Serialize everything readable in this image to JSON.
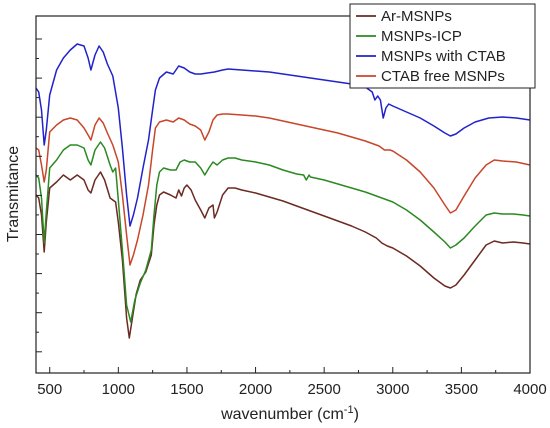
{
  "chart_data": {
    "type": "line",
    "title": "",
    "xlabel": "wavenumber (cm",
    "xlabel_sup": "-1",
    "xlabel_close": ")",
    "ylabel": "Transmitance",
    "xlim": [
      400,
      4000
    ],
    "x_ticks": [
      500,
      1000,
      1500,
      2000,
      2500,
      3000,
      3500,
      4000
    ],
    "y_tick_labels_shown": false,
    "grid": false,
    "legend": "top-right",
    "series": [
      {
        "name": "Ar-MSNPs",
        "color": "#6b2a22",
        "points": [
          [
            400,
            195
          ],
          [
            420,
            198
          ],
          [
            440,
            215
          ],
          [
            460,
            252
          ],
          [
            475,
            222
          ],
          [
            500,
            188
          ],
          [
            550,
            182
          ],
          [
            600,
            175
          ],
          [
            650,
            180
          ],
          [
            700,
            175
          ],
          [
            750,
            180
          ],
          [
            780,
            190
          ],
          [
            800,
            193
          ],
          [
            830,
            180
          ],
          [
            870,
            172
          ],
          [
            900,
            180
          ],
          [
            940,
            198
          ],
          [
            960,
            200
          ],
          [
            980,
            202
          ],
          [
            1000,
            222
          ],
          [
            1030,
            260
          ],
          [
            1060,
            318
          ],
          [
            1080,
            338
          ],
          [
            1100,
            320
          ],
          [
            1130,
            294
          ],
          [
            1160,
            280
          ],
          [
            1200,
            272
          ],
          [
            1240,
            255
          ],
          [
            1260,
            225
          ],
          [
            1280,
            205
          ],
          [
            1300,
            195
          ],
          [
            1330,
            192
          ],
          [
            1380,
            195
          ],
          [
            1420,
            198
          ],
          [
            1440,
            190
          ],
          [
            1460,
            196
          ],
          [
            1480,
            188
          ],
          [
            1500,
            185
          ],
          [
            1530,
            190
          ],
          [
            1560,
            200
          ],
          [
            1600,
            210
          ],
          [
            1630,
            218
          ],
          [
            1660,
            208
          ],
          [
            1690,
            205
          ],
          [
            1700,
            218
          ],
          [
            1720,
            212
          ],
          [
            1760,
            195
          ],
          [
            1800,
            188
          ],
          [
            1850,
            188
          ],
          [
            1900,
            190
          ],
          [
            2000,
            193
          ],
          [
            2100,
            197
          ],
          [
            2200,
            201
          ],
          [
            2300,
            206
          ],
          [
            2400,
            211
          ],
          [
            2500,
            216
          ],
          [
            2600,
            221
          ],
          [
            2700,
            226
          ],
          [
            2800,
            232
          ],
          [
            2880,
            238
          ],
          [
            2920,
            243
          ],
          [
            2960,
            246
          ],
          [
            3000,
            248
          ],
          [
            3100,
            256
          ],
          [
            3200,
            266
          ],
          [
            3300,
            278
          ],
          [
            3380,
            286
          ],
          [
            3420,
            288
          ],
          [
            3460,
            285
          ],
          [
            3520,
            275
          ],
          [
            3600,
            260
          ],
          [
            3680,
            245
          ],
          [
            3740,
            241
          ],
          [
            3800,
            243
          ],
          [
            3880,
            242
          ],
          [
            3950,
            243
          ],
          [
            4000,
            244
          ]
        ]
      },
      {
        "name": "MSNPs-ICP",
        "color": "#2a8a22",
        "points": [
          [
            400,
            175
          ],
          [
            420,
            178
          ],
          [
            440,
            198
          ],
          [
            460,
            243
          ],
          [
            475,
            212
          ],
          [
            500,
            168
          ],
          [
            550,
            160
          ],
          [
            600,
            150
          ],
          [
            650,
            145
          ],
          [
            700,
            145
          ],
          [
            750,
            148
          ],
          [
            780,
            160
          ],
          [
            800,
            165
          ],
          [
            830,
            150
          ],
          [
            870,
            142
          ],
          [
            900,
            148
          ],
          [
            940,
            165
          ],
          [
            960,
            172
          ],
          [
            980,
            168
          ],
          [
            1000,
            200
          ],
          [
            1030,
            250
          ],
          [
            1060,
            305
          ],
          [
            1090,
            322
          ],
          [
            1120,
            300
          ],
          [
            1160,
            283
          ],
          [
            1200,
            270
          ],
          [
            1240,
            250
          ],
          [
            1260,
            215
          ],
          [
            1280,
            185
          ],
          [
            1300,
            172
          ],
          [
            1330,
            168
          ],
          [
            1380,
            170
          ],
          [
            1420,
            170
          ],
          [
            1450,
            162
          ],
          [
            1480,
            160
          ],
          [
            1520,
            162
          ],
          [
            1560,
            162
          ],
          [
            1600,
            168
          ],
          [
            1630,
            175
          ],
          [
            1660,
            168
          ],
          [
            1690,
            162
          ],
          [
            1720,
            165
          ],
          [
            1760,
            160
          ],
          [
            1800,
            158
          ],
          [
            1850,
            158
          ],
          [
            1900,
            160
          ],
          [
            2000,
            162
          ],
          [
            2100,
            165
          ],
          [
            2200,
            170
          ],
          [
            2300,
            174
          ],
          [
            2350,
            175
          ],
          [
            2370,
            180
          ],
          [
            2390,
            175
          ],
          [
            2400,
            177
          ],
          [
            2500,
            180
          ],
          [
            2600,
            184
          ],
          [
            2700,
            188
          ],
          [
            2800,
            192
          ],
          [
            2900,
            197
          ],
          [
            2960,
            200
          ],
          [
            3000,
            202
          ],
          [
            3100,
            210
          ],
          [
            3200,
            220
          ],
          [
            3300,
            232
          ],
          [
            3380,
            242
          ],
          [
            3420,
            248
          ],
          [
            3460,
            245
          ],
          [
            3520,
            238
          ],
          [
            3600,
            226
          ],
          [
            3680,
            215
          ],
          [
            3740,
            213
          ],
          [
            3800,
            214
          ],
          [
            3880,
            214
          ],
          [
            3950,
            215
          ],
          [
            4000,
            216
          ]
        ]
      },
      {
        "name": "MSNPs with CTAB",
        "color": "#2222cc",
        "points": [
          [
            400,
            88
          ],
          [
            420,
            92
          ],
          [
            440,
            110
          ],
          [
            460,
            145
          ],
          [
            475,
            130
          ],
          [
            500,
            95
          ],
          [
            550,
            70
          ],
          [
            600,
            58
          ],
          [
            650,
            50
          ],
          [
            700,
            44
          ],
          [
            750,
            46
          ],
          [
            780,
            58
          ],
          [
            800,
            70
          ],
          [
            830,
            55
          ],
          [
            860,
            46
          ],
          [
            890,
            52
          ],
          [
            920,
            64
          ],
          [
            960,
            76
          ],
          [
            1000,
            108
          ],
          [
            1030,
            148
          ],
          [
            1060,
            195
          ],
          [
            1085,
            226
          ],
          [
            1110,
            215
          ],
          [
            1140,
            198
          ],
          [
            1180,
            168
          ],
          [
            1220,
            140
          ],
          [
            1250,
            110
          ],
          [
            1270,
            90
          ],
          [
            1300,
            78
          ],
          [
            1350,
            72
          ],
          [
            1400,
            74
          ],
          [
            1440,
            66
          ],
          [
            1480,
            68
          ],
          [
            1520,
            72
          ],
          [
            1560,
            74
          ],
          [
            1600,
            74
          ],
          [
            1650,
            73
          ],
          [
            1700,
            72
          ],
          [
            1760,
            70
          ],
          [
            1800,
            69
          ],
          [
            1900,
            70
          ],
          [
            2000,
            71
          ],
          [
            2100,
            72
          ],
          [
            2200,
            74
          ],
          [
            2300,
            76
          ],
          [
            2400,
            78
          ],
          [
            2500,
            80
          ],
          [
            2600,
            82
          ],
          [
            2700,
            84
          ],
          [
            2800,
            87
          ],
          [
            2850,
            92
          ],
          [
            2870,
            100
          ],
          [
            2890,
            96
          ],
          [
            2910,
            100
          ],
          [
            2930,
            118
          ],
          [
            2950,
            108
          ],
          [
            2970,
            104
          ],
          [
            3000,
            106
          ],
          [
            3100,
            112
          ],
          [
            3200,
            118
          ],
          [
            3300,
            126
          ],
          [
            3380,
            133
          ],
          [
            3420,
            136
          ],
          [
            3460,
            134
          ],
          [
            3520,
            128
          ],
          [
            3600,
            122
          ],
          [
            3700,
            118
          ],
          [
            3800,
            117
          ],
          [
            3900,
            118
          ],
          [
            4000,
            120
          ]
        ]
      },
      {
        "name": "CTAB free MSNPs",
        "color": "#c8462a",
        "points": [
          [
            400,
            148
          ],
          [
            420,
            150
          ],
          [
            440,
            165
          ],
          [
            460,
            182
          ],
          [
            475,
            170
          ],
          [
            500,
            132
          ],
          [
            550,
            125
          ],
          [
            600,
            120
          ],
          [
            650,
            118
          ],
          [
            700,
            120
          ],
          [
            750,
            128
          ],
          [
            780,
            135
          ],
          [
            800,
            140
          ],
          [
            830,
            125
          ],
          [
            860,
            118
          ],
          [
            890,
            123
          ],
          [
            920,
            133
          ],
          [
            960,
            145
          ],
          [
            1000,
            162
          ],
          [
            1030,
            195
          ],
          [
            1060,
            235
          ],
          [
            1085,
            265
          ],
          [
            1110,
            255
          ],
          [
            1140,
            240
          ],
          [
            1180,
            215
          ],
          [
            1220,
            185
          ],
          [
            1250,
            150
          ],
          [
            1270,
            128
          ],
          [
            1300,
            122
          ],
          [
            1350,
            120
          ],
          [
            1400,
            122
          ],
          [
            1440,
            118
          ],
          [
            1480,
            120
          ],
          [
            1520,
            124
          ],
          [
            1560,
            126
          ],
          [
            1600,
            130
          ],
          [
            1630,
            140
          ],
          [
            1660,
            132
          ],
          [
            1690,
            120
          ],
          [
            1720,
            115
          ],
          [
            1760,
            114
          ],
          [
            1800,
            114
          ],
          [
            1900,
            115
          ],
          [
            2000,
            116
          ],
          [
            2100,
            118
          ],
          [
            2200,
            121
          ],
          [
            2300,
            124
          ],
          [
            2400,
            127
          ],
          [
            2500,
            130
          ],
          [
            2600,
            133
          ],
          [
            2700,
            137
          ],
          [
            2800,
            141
          ],
          [
            2900,
            146
          ],
          [
            2940,
            150
          ],
          [
            2980,
            150
          ],
          [
            3000,
            151
          ],
          [
            3100,
            160
          ],
          [
            3200,
            172
          ],
          [
            3300,
            188
          ],
          [
            3380,
            205
          ],
          [
            3420,
            213
          ],
          [
            3460,
            210
          ],
          [
            3520,
            196
          ],
          [
            3600,
            178
          ],
          [
            3680,
            165
          ],
          [
            3740,
            160
          ],
          [
            3800,
            161
          ],
          [
            3900,
            162
          ],
          [
            4000,
            165
          ]
        ]
      }
    ]
  }
}
